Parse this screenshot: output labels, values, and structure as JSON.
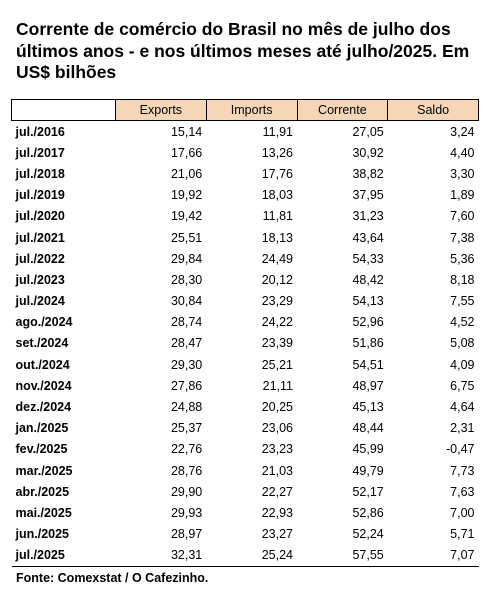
{
  "title": "Corrente de comércio do Brasil no mês de julho dos últimos anos - e nos últimos meses até julho/2025. Em US$ bilhões",
  "header_fill_color": "#f5d7b8",
  "columns": [
    "Exports",
    "Imports",
    "Corrente",
    "Saldo"
  ],
  "rows": [
    {
      "label": "jul./2016",
      "values": [
        "15,14",
        "11,91",
        "27,05",
        "3,24"
      ]
    },
    {
      "label": "jul./2017",
      "values": [
        "17,66",
        "13,26",
        "30,92",
        "4,40"
      ]
    },
    {
      "label": "jul./2018",
      "values": [
        "21,06",
        "17,76",
        "38,82",
        "3,30"
      ]
    },
    {
      "label": "jul./2019",
      "values": [
        "19,92",
        "18,03",
        "37,95",
        "1,89"
      ]
    },
    {
      "label": "jul./2020",
      "values": [
        "19,42",
        "11,81",
        "31,23",
        "7,60"
      ]
    },
    {
      "label": "jul./2021",
      "values": [
        "25,51",
        "18,13",
        "43,64",
        "7,38"
      ]
    },
    {
      "label": "jul./2022",
      "values": [
        "29,84",
        "24,49",
        "54,33",
        "5,36"
      ]
    },
    {
      "label": "jul./2023",
      "values": [
        "28,30",
        "20,12",
        "48,42",
        "8,18"
      ]
    },
    {
      "label": "jul./2024",
      "values": [
        "30,84",
        "23,29",
        "54,13",
        "7,55"
      ]
    },
    {
      "label": "ago./2024",
      "values": [
        "28,74",
        "24,22",
        "52,96",
        "4,52"
      ]
    },
    {
      "label": "set./2024",
      "values": [
        "28,47",
        "23,39",
        "51,86",
        "5,08"
      ]
    },
    {
      "label": "out./2024",
      "values": [
        "29,30",
        "25,21",
        "54,51",
        "4,09"
      ]
    },
    {
      "label": "nov./2024",
      "values": [
        "27,86",
        "21,11",
        "48,97",
        "6,75"
      ]
    },
    {
      "label": "dez./2024",
      "values": [
        "24,88",
        "20,25",
        "45,13",
        "4,64"
      ]
    },
    {
      "label": "jan./2025",
      "values": [
        "25,37",
        "23,06",
        "48,44",
        "2,31"
      ]
    },
    {
      "label": "fev./2025",
      "values": [
        "22,76",
        "23,23",
        "45,99",
        "-0,47"
      ]
    },
    {
      "label": "mar./2025",
      "values": [
        "28,76",
        "21,03",
        "49,79",
        "7,73"
      ]
    },
    {
      "label": "abr./2025",
      "values": [
        "29,90",
        "22,27",
        "52,17",
        "7,63"
      ]
    },
    {
      "label": "mai./2025",
      "values": [
        "29,93",
        "22,93",
        "52,86",
        "7,00"
      ]
    },
    {
      "label": "jun./2025",
      "values": [
        "28,97",
        "23,27",
        "52,24",
        "5,71"
      ]
    },
    {
      "label": "jul./2025",
      "values": [
        "32,31",
        "25,24",
        "57,55",
        "7,07"
      ]
    }
  ],
  "source": "Fonte: Comexstat / O Cafezinho."
}
